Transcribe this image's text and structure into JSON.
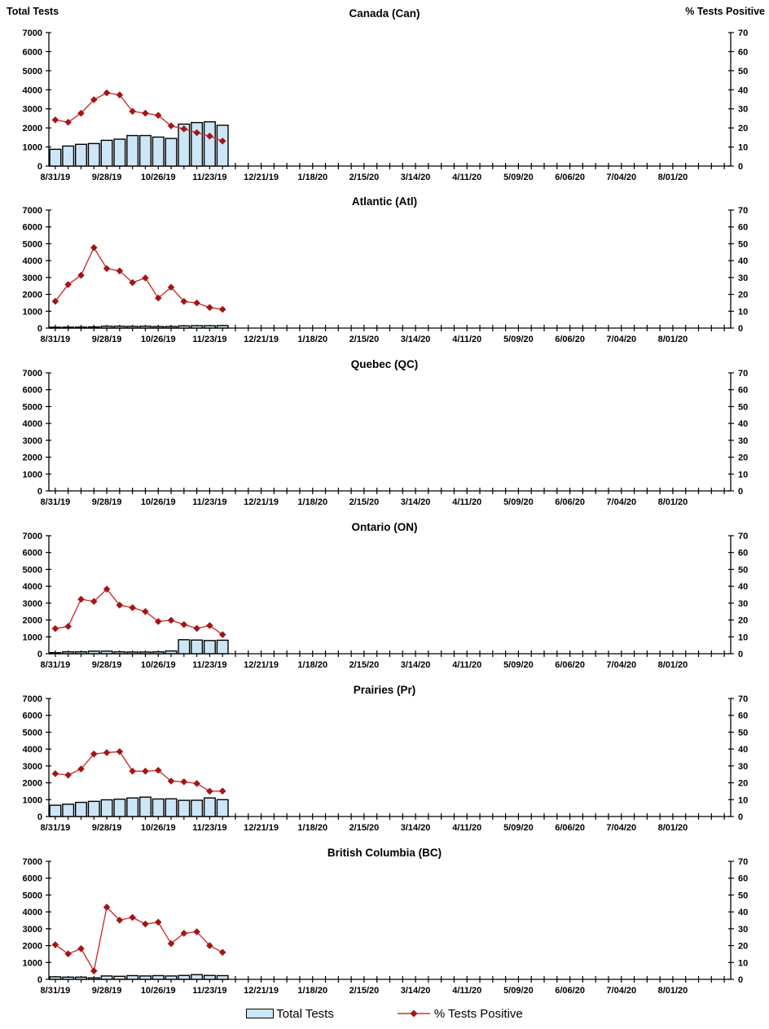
{
  "page": {
    "left_axis_title": "Total Tests",
    "right_axis_title": "% Tests Positive"
  },
  "colors": {
    "bar_fill": "#CDE6F7",
    "bar_stroke": "#000000",
    "line": "#C93232",
    "marker": "#A31515",
    "axis": "#000000"
  },
  "legend": [
    {
      "label": "Total Tests",
      "type": "bar"
    },
    {
      "label": "% Tests Positive",
      "type": "line"
    }
  ],
  "axes": {
    "y_left": {
      "title": "Total Tests",
      "min": 0,
      "max": 7000,
      "step": 1000
    },
    "y_right": {
      "title": "% Tests Positive",
      "min": 0,
      "max": 70,
      "step": 10
    },
    "x": {
      "weeks": 53,
      "label_every": 4,
      "tick_labels": [
        "8/31/19",
        "9/28/19",
        "10/26/19",
        "11/23/19",
        "12/21/19",
        "1/18/20",
        "2/15/20",
        "3/14/20",
        "4/11/20",
        "5/09/20",
        "6/06/20",
        "7/04/20",
        "8/01/20"
      ]
    }
  },
  "data_weeks": [
    "8/31/19",
    "9/07/19",
    "9/14/19",
    "9/21/19",
    "9/28/19",
    "10/05/19",
    "10/12/19",
    "10/19/19",
    "10/26/19",
    "11/02/19",
    "11/09/19",
    "11/16/19",
    "11/23/19",
    "11/30/19"
  ],
  "chart_data": [
    {
      "type": "combo",
      "title": "Canada (Can)",
      "xlabel": "",
      "ylabel_left": "Total Tests",
      "ylabel_right": "% Tests Positive",
      "ylim_left": [
        0,
        7000
      ],
      "ylim_right": [
        0,
        70
      ],
      "grid": false,
      "series": [
        {
          "name": "Total Tests",
          "type": "bar",
          "values": [
            880,
            1050,
            1140,
            1180,
            1350,
            1410,
            1600,
            1600,
            1520,
            1450,
            2200,
            2280,
            2320,
            2140
          ]
        },
        {
          "name": "% Tests Positive",
          "type": "line",
          "values": [
            24.2,
            23.0,
            27.7,
            34.8,
            38.4,
            37.3,
            28.7,
            27.7,
            26.6,
            21.1,
            19.5,
            17.5,
            15.7,
            13.1
          ]
        }
      ]
    },
    {
      "type": "combo",
      "title": "Atlantic (Atl)",
      "ylim_left": [
        0,
        7000
      ],
      "ylim_right": [
        0,
        70
      ],
      "grid": false,
      "series": [
        {
          "name": "Total Tests",
          "type": "bar",
          "values": [
            50,
            55,
            60,
            70,
            110,
            110,
            100,
            110,
            90,
            95,
            130,
            140,
            140,
            150
          ]
        },
        {
          "name": "% Tests Positive",
          "type": "line",
          "values": [
            15.9,
            25.8,
            31.3,
            47.7,
            35.3,
            33.9,
            27.0,
            29.7,
            17.8,
            24.2,
            15.8,
            14.9,
            12.2,
            11.1
          ]
        }
      ]
    },
    {
      "type": "combo",
      "title": "Quebec (QC)",
      "ylim_left": [
        0,
        7000
      ],
      "ylim_right": [
        0,
        70
      ],
      "grid": false,
      "series": [
        {
          "name": "Total Tests",
          "type": "bar",
          "values": []
        },
        {
          "name": "% Tests Positive",
          "type": "line",
          "values": []
        }
      ]
    },
    {
      "type": "combo",
      "title": "Ontario (ON)",
      "ylim_left": [
        0,
        7000
      ],
      "ylim_right": [
        0,
        70
      ],
      "grid": false,
      "series": [
        {
          "name": "Total Tests",
          "type": "bar",
          "values": [
            60,
            110,
            110,
            150,
            150,
            110,
            100,
            100,
            110,
            160,
            830,
            810,
            780,
            800
          ]
        },
        {
          "name": "% Tests Positive",
          "type": "line",
          "values": [
            14.9,
            16.2,
            32.3,
            31.0,
            38.3,
            28.8,
            27.3,
            25.0,
            19.1,
            19.8,
            17.3,
            15.0,
            16.7,
            11.3
          ]
        }
      ]
    },
    {
      "type": "combo",
      "title": "Prairies (Pr)",
      "ylim_left": [
        0,
        7000
      ],
      "ylim_right": [
        0,
        70
      ],
      "grid": false,
      "series": [
        {
          "name": "Total Tests",
          "type": "bar",
          "values": [
            670,
            730,
            840,
            900,
            990,
            1030,
            1100,
            1150,
            1040,
            1050,
            960,
            965,
            1100,
            1000
          ]
        },
        {
          "name": "% Tests Positive",
          "type": "line",
          "values": [
            25.4,
            24.6,
            28.2,
            37.1,
            37.9,
            38.5,
            26.9,
            26.9,
            27.4,
            21.0,
            20.6,
            19.6,
            15.0,
            15.1
          ]
        }
      ]
    },
    {
      "type": "combo",
      "title": "British Columbia (BC)",
      "ylim_left": [
        0,
        7000
      ],
      "ylim_right": [
        0,
        70
      ],
      "grid": false,
      "series": [
        {
          "name": "Total Tests",
          "type": "bar",
          "values": [
            150,
            130,
            130,
            90,
            200,
            180,
            220,
            200,
            220,
            200,
            230,
            280,
            230,
            220
          ]
        },
        {
          "name": "% Tests Positive",
          "type": "line",
          "values": [
            20.5,
            15.1,
            18.2,
            5.0,
            42.8,
            35.1,
            36.7,
            32.8,
            33.9,
            21.2,
            27.3,
            28.2,
            20.0,
            16.0
          ]
        }
      ]
    }
  ]
}
